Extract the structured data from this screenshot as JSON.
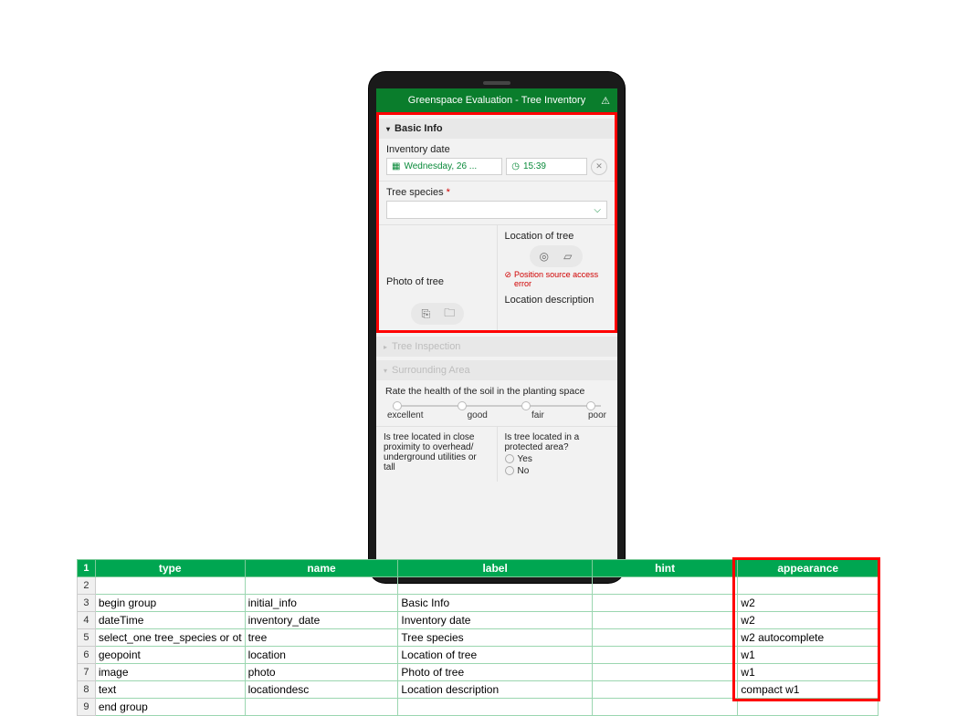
{
  "colors": {
    "green": "#00a651",
    "darkgreen": "#0a7d2c",
    "red": "#ff0000",
    "error": "#d00000"
  },
  "app": {
    "title": "Greenspace Evaluation - Tree Inventory"
  },
  "groups": {
    "basic": {
      "label": "Basic Info"
    },
    "inspection": {
      "label": "Tree Inspection"
    },
    "surrounding": {
      "label": "Surrounding Area"
    }
  },
  "fields": {
    "date": {
      "label": "Inventory date",
      "value": "Wednesday, 26 ...",
      "time": "15:39"
    },
    "species": {
      "label": "Tree species"
    },
    "location": {
      "label": "Location of tree",
      "error": "Position source access error"
    },
    "photo": {
      "label": "Photo of tree"
    },
    "locdesc": {
      "label": "Location description"
    }
  },
  "soil": {
    "prompt": "Rate the health of the soil in the planting space",
    "opts": [
      "excellent",
      "good",
      "fair",
      "poor"
    ]
  },
  "bottom": {
    "utilities": "Is tree located in close proximity to overhead/ underground utilities or tall",
    "protected": "Is tree located in a protected area?",
    "yes": "Yes",
    "no": "No"
  },
  "table": {
    "headers": [
      "type",
      "name",
      "label",
      "hint",
      "appearance"
    ],
    "rows": [
      {
        "n": 1,
        "header": true
      },
      {
        "n": 2,
        "cells": [
          "",
          "",
          "",
          "",
          ""
        ]
      },
      {
        "n": 3,
        "cells": [
          "begin group",
          "initial_info",
          "Basic Info",
          "",
          "w2"
        ]
      },
      {
        "n": 4,
        "cells": [
          "dateTime",
          "inventory_date",
          "Inventory date",
          "",
          "w2"
        ]
      },
      {
        "n": 5,
        "cells": [
          "select_one tree_species or ot",
          "tree",
          "Tree species",
          "",
          "w2 autocomplete"
        ]
      },
      {
        "n": 6,
        "cells": [
          "geopoint",
          "location",
          "Location of tree",
          "",
          "w1"
        ]
      },
      {
        "n": 7,
        "cells": [
          "image",
          "photo",
          "Photo of tree",
          "",
          "w1"
        ]
      },
      {
        "n": 8,
        "cells": [
          "text",
          "locationdesc",
          "Location description",
          "",
          "compact w1"
        ]
      },
      {
        "n": 9,
        "cells": [
          "end group",
          "",
          "",
          "",
          ""
        ]
      }
    ]
  }
}
